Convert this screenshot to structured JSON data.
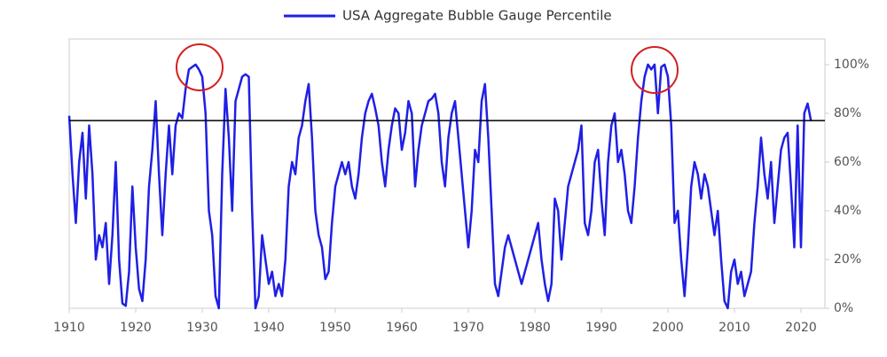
{
  "chart_data": {
    "type": "line",
    "x": [
      1910,
      1910.5,
      1911,
      1911.5,
      1912,
      1912.5,
      1913,
      1913.5,
      1914,
      1914.5,
      1915,
      1915.5,
      1916,
      1916.5,
      1917,
      1917.5,
      1918,
      1918.5,
      1919,
      1919.5,
      1920,
      1920.5,
      1921,
      1921.5,
      1922,
      1922.5,
      1923,
      1923.5,
      1924,
      1924.5,
      1925,
      1925.5,
      1926,
      1926.5,
      1927,
      1927.5,
      1928,
      1928.5,
      1929,
      1929.5,
      1930,
      1930.5,
      1931,
      1931.5,
      1932,
      1932.5,
      1933,
      1933.5,
      1934,
      1934.5,
      1935,
      1935.5,
      1936,
      1936.5,
      1937,
      1937.5,
      1938,
      1938.5,
      1939,
      1939.5,
      1940,
      1940.5,
      1941,
      1941.5,
      1942,
      1942.5,
      1943,
      1943.5,
      1944,
      1944.5,
      1945,
      1945.5,
      1946,
      1946.5,
      1947,
      1947.5,
      1948,
      1948.5,
      1949,
      1949.5,
      1950,
      1950.5,
      1951,
      1951.5,
      1952,
      1952.5,
      1953,
      1953.5,
      1954,
      1954.5,
      1955,
      1955.5,
      1956,
      1956.5,
      1957,
      1957.5,
      1958,
      1958.5,
      1959,
      1959.5,
      1960,
      1960.5,
      1961,
      1961.5,
      1962,
      1962.5,
      1963,
      1963.5,
      1964,
      1964.5,
      1965,
      1965.5,
      1966,
      1966.5,
      1967,
      1967.5,
      1968,
      1968.5,
      1969,
      1969.5,
      1970,
      1970.5,
      1971,
      1971.5,
      1972,
      1972.5,
      1973,
      1973.5,
      1974,
      1974.5,
      1975,
      1975.5,
      1976,
      1976.5,
      1977,
      1977.5,
      1978,
      1978.5,
      1979,
      1979.5,
      1980,
      1980.5,
      1981,
      1981.5,
      1982,
      1982.5,
      1983,
      1983.5,
      1984,
      1984.5,
      1985,
      1985.5,
      1986,
      1986.5,
      1987,
      1987.5,
      1988,
      1988.5,
      1989,
      1989.5,
      1990,
      1990.5,
      1991,
      1991.5,
      1992,
      1992.5,
      1993,
      1993.5,
      1994,
      1994.5,
      1995,
      1995.5,
      1996,
      1996.5,
      1997,
      1997.5,
      1998,
      1998.5,
      1999,
      1999.5,
      2000,
      2000.5,
      2001,
      2001.5,
      2002,
      2002.5,
      2003,
      2003.5,
      2004,
      2004.5,
      2005,
      2005.5,
      2006,
      2006.5,
      2007,
      2007.5,
      2008,
      2008.5,
      2009,
      2009.5,
      2010,
      2010.5,
      2011,
      2011.5,
      2012,
      2012.5,
      2013,
      2013.5,
      2014,
      2014.5,
      2015,
      2015.5,
      2016,
      2016.5,
      2017,
      2017.5,
      2018,
      2018.5,
      2019,
      2019.5,
      2020,
      2020.5,
      2021,
      2021.5
    ],
    "series": [
      {
        "name": "USA Aggregate Bubble Gauge Percentile",
        "color": "#1f1fe6",
        "values": [
          79,
          55,
          35,
          60,
          72,
          45,
          75,
          55,
          20,
          30,
          25,
          35,
          10,
          30,
          60,
          20,
          2,
          1,
          15,
          50,
          25,
          8,
          3,
          20,
          50,
          65,
          85,
          55,
          30,
          55,
          75,
          55,
          75,
          80,
          78,
          90,
          98,
          99,
          100,
          98,
          95,
          80,
          40,
          30,
          5,
          0,
          55,
          90,
          70,
          40,
          85,
          90,
          95,
          96,
          95,
          40,
          0,
          5,
          30,
          20,
          10,
          15,
          5,
          10,
          5,
          20,
          50,
          60,
          55,
          70,
          75,
          85,
          92,
          70,
          40,
          30,
          25,
          12,
          15,
          35,
          50,
          55,
          60,
          55,
          60,
          50,
          45,
          55,
          70,
          80,
          85,
          88,
          82,
          75,
          60,
          50,
          65,
          75,
          82,
          80,
          65,
          72,
          85,
          80,
          50,
          65,
          75,
          80,
          85,
          86,
          88,
          80,
          60,
          50,
          70,
          80,
          85,
          70,
          55,
          40,
          25,
          40,
          65,
          60,
          85,
          92,
          70,
          40,
          10,
          5,
          15,
          25,
          30,
          25,
          20,
          15,
          10,
          15,
          20,
          25,
          30,
          35,
          20,
          10,
          3,
          10,
          45,
          40,
          20,
          35,
          50,
          55,
          60,
          65,
          75,
          35,
          30,
          40,
          60,
          65,
          45,
          30,
          60,
          75,
          80,
          60,
          65,
          55,
          40,
          35,
          50,
          70,
          85,
          95,
          100,
          98,
          100,
          80,
          99,
          100,
          95,
          75,
          35,
          40,
          20,
          5,
          25,
          50,
          60,
          55,
          45,
          55,
          50,
          40,
          30,
          40,
          20,
          3,
          0,
          15,
          20,
          10,
          15,
          5,
          10,
          15,
          35,
          50,
          70,
          55,
          45,
          60,
          35,
          50,
          65,
          70,
          72,
          50,
          25,
          75,
          25,
          80,
          84,
          77
        ]
      }
    ],
    "reference_line": 77,
    "reference_color": "#000000",
    "xlim": [
      1910,
      2023.6
    ],
    "xticks": [
      1910,
      1920,
      1930,
      1940,
      1950,
      1960,
      1970,
      1980,
      1990,
      2000,
      2010,
      2020
    ],
    "ylim": [
      0,
      110.5
    ],
    "yticks": [
      {
        "value": 0,
        "label": "0%"
      },
      {
        "value": 20,
        "label": "20%"
      },
      {
        "value": 40,
        "label": "40%"
      },
      {
        "value": 60,
        "label": "60%"
      },
      {
        "value": 80,
        "label": "80%"
      },
      {
        "value": 100,
        "label": "100%"
      }
    ],
    "legend": "top"
  }
}
